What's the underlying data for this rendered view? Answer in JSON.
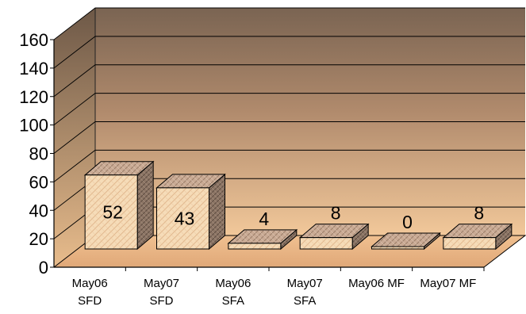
{
  "chart_data": {
    "type": "bar",
    "style": "3d-column",
    "categories": [
      [
        "May06",
        "SFD"
      ],
      [
        "May07",
        "SFD"
      ],
      [
        "May06",
        "SFA"
      ],
      [
        "May07",
        "SFA"
      ],
      [
        "May06 MF"
      ],
      [
        "May07 MF"
      ]
    ],
    "values": [
      52,
      43,
      4,
      8,
      0,
      8
    ],
    "data_labels": [
      "52",
      "43",
      "4",
      "8",
      "0",
      "8"
    ],
    "y_ticks": [
      "0",
      "20",
      "40",
      "60",
      "80",
      "100",
      "120",
      "140",
      "160"
    ],
    "ylim": [
      0,
      160
    ],
    "grid": true,
    "legend": "none",
    "colors": {
      "bar_front": "#f6dcb8",
      "bar_side": "#8c7565",
      "bar_top": "#c9aa94",
      "wall_top": "#7a6452",
      "wall_bottom": "#f2c89a",
      "floor": "#e9b888",
      "gridline": "#000000"
    }
  }
}
